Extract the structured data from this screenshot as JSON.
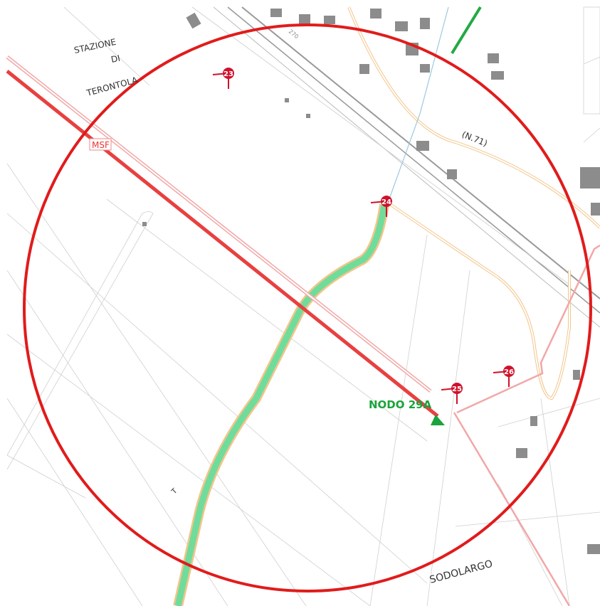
{
  "station": [
    "STAZIONE",
    "DI",
    "TERONTOLA"
  ],
  "line_label": "MSF",
  "road": "(N.71)",
  "rail": "270",
  "markers": [
    "23",
    "24",
    "25",
    "26"
  ],
  "node": "NODO 29A",
  "locality": "SODOLARGO",
  "letter": "T"
}
